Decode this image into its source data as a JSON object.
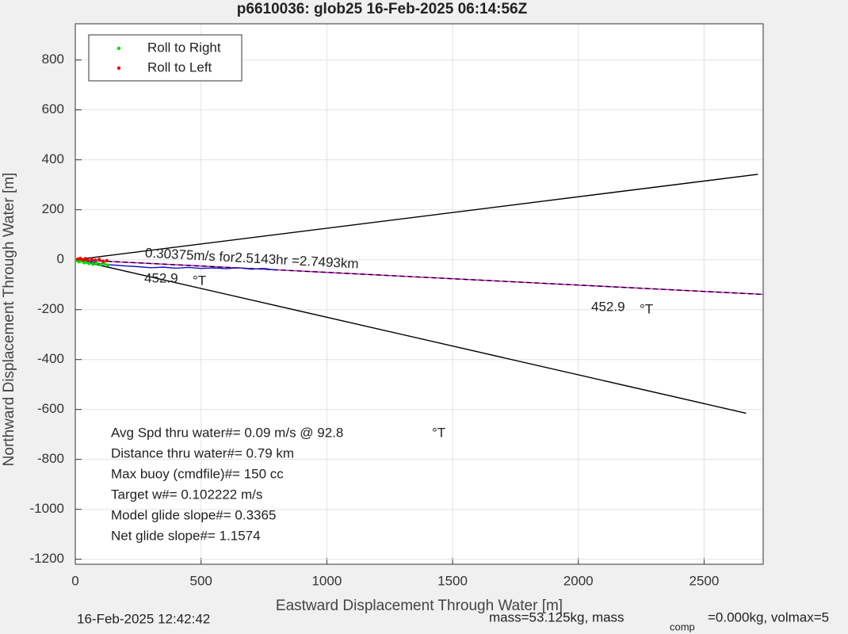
{
  "chart_data": {
    "type": "line",
    "title": "p6610036: glob25 16-Feb-2025 06:14:56Z",
    "x_label": "Eastward Displacement Through Water [m]",
    "y_label": "Northward Displacement Through Water [m]",
    "xlim": [
      0,
      2735
    ],
    "ylim": [
      -1220,
      945
    ],
    "xticks": [
      0,
      500,
      1000,
      1500,
      2000,
      2500
    ],
    "yticks": [
      -1200,
      -1000,
      -800,
      -600,
      -400,
      -200,
      0,
      200,
      400,
      600,
      800
    ],
    "grid": true,
    "legend_position": "upper left",
    "series": [
      {
        "color": "#000000",
        "style": "solid",
        "x": [
          0,
          2714
        ],
        "values": [
          0,
          342
        ]
      },
      {
        "color": "#000000",
        "style": "solid",
        "x": [
          0,
          2667
        ],
        "values": [
          0,
          -615
        ]
      },
      {
        "color": "#ff00ff",
        "style": "solid",
        "x": [
          0,
          2735
        ],
        "values": [
          0,
          -139
        ]
      },
      {
        "color": "#000000",
        "style": "dashed",
        "x": [
          0,
          2735
        ],
        "values": [
          0,
          -139
        ]
      },
      {
        "color": "#1010c0",
        "style": "solid",
        "x": [
          0,
          20,
          40,
          60,
          80,
          100,
          130,
          160,
          200,
          250,
          300,
          350,
          400,
          450,
          500,
          550,
          600,
          650,
          700,
          750,
          800
        ],
        "values": [
          0,
          -3,
          -5,
          -8,
          -12,
          -15,
          -20,
          -22,
          -25,
          -28,
          -32,
          -30,
          -34,
          -31,
          -35,
          -33,
          -36,
          -32,
          -38,
          -35,
          -42
        ]
      },
      {
        "name": "Roll to Right",
        "color": "#00dd00",
        "style": "dots",
        "x": [
          5,
          15,
          25,
          35,
          45,
          55,
          70,
          85,
          100,
          115,
          130
        ],
        "values": [
          -2,
          -8,
          -5,
          -12,
          -10,
          -15,
          -18,
          -14,
          -20,
          -16,
          -22
        ]
      },
      {
        "name": "Roll to Left",
        "color": "#ee0000",
        "style": "dots",
        "x": [
          10,
          20,
          30,
          40,
          50,
          65,
          80,
          95,
          110,
          125
        ],
        "values": [
          2,
          5,
          0,
          4,
          -3,
          3,
          -2,
          1,
          -6,
          -4
        ]
      }
    ],
    "annotations": [
      "0.30375m/s for2.5143hr =2.7493km",
      "452.9",
      "°T",
      "452.9",
      "°T"
    ],
    "stats": [
      "Avg Spd thru water#=  0.09 m/s @  92.8",
      "°T",
      "Distance thru water#=  0.79 km",
      "Max buoy (cmdfile)#= 150 cc",
      "Target w#= 0.102222 m/s",
      "Model glide slope#= 0.3365",
      "Net glide slope#= 1.1574"
    ],
    "footer": [
      "16-Feb-2025 12:42:42",
      "mass=53.125kg, mass",
      "comp",
      "=0.000kg, volmax=5"
    ]
  }
}
